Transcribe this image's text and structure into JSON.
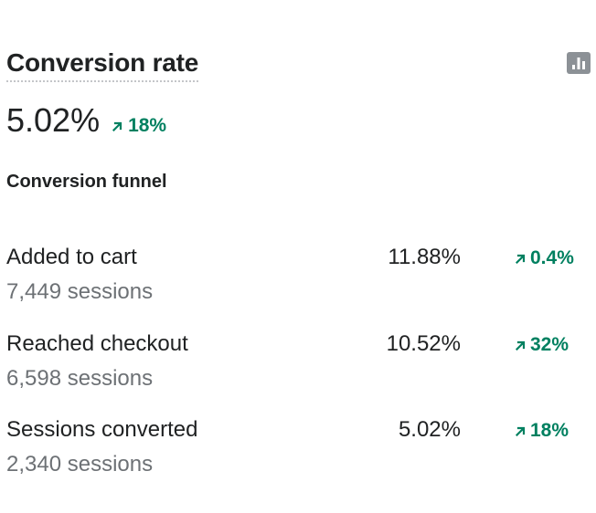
{
  "card": {
    "title": "Conversion rate",
    "chart_icon": "bar-chart-icon",
    "value": "5.02%",
    "change": "18%",
    "change_icon": "arrow-up-right-icon",
    "positive_color": "#008060"
  },
  "funnel": {
    "heading": "Conversion funnel",
    "rows": [
      {
        "label": "Added to cart",
        "sessions": "7,449 sessions",
        "rate": "11.88%",
        "change": "0.4%"
      },
      {
        "label": "Reached checkout",
        "sessions": "6,598 sessions",
        "rate": "10.52%",
        "change": "32%"
      },
      {
        "label": "Sessions converted",
        "sessions": "2,340 sessions",
        "rate": "5.02%",
        "change": "18%"
      }
    ]
  }
}
